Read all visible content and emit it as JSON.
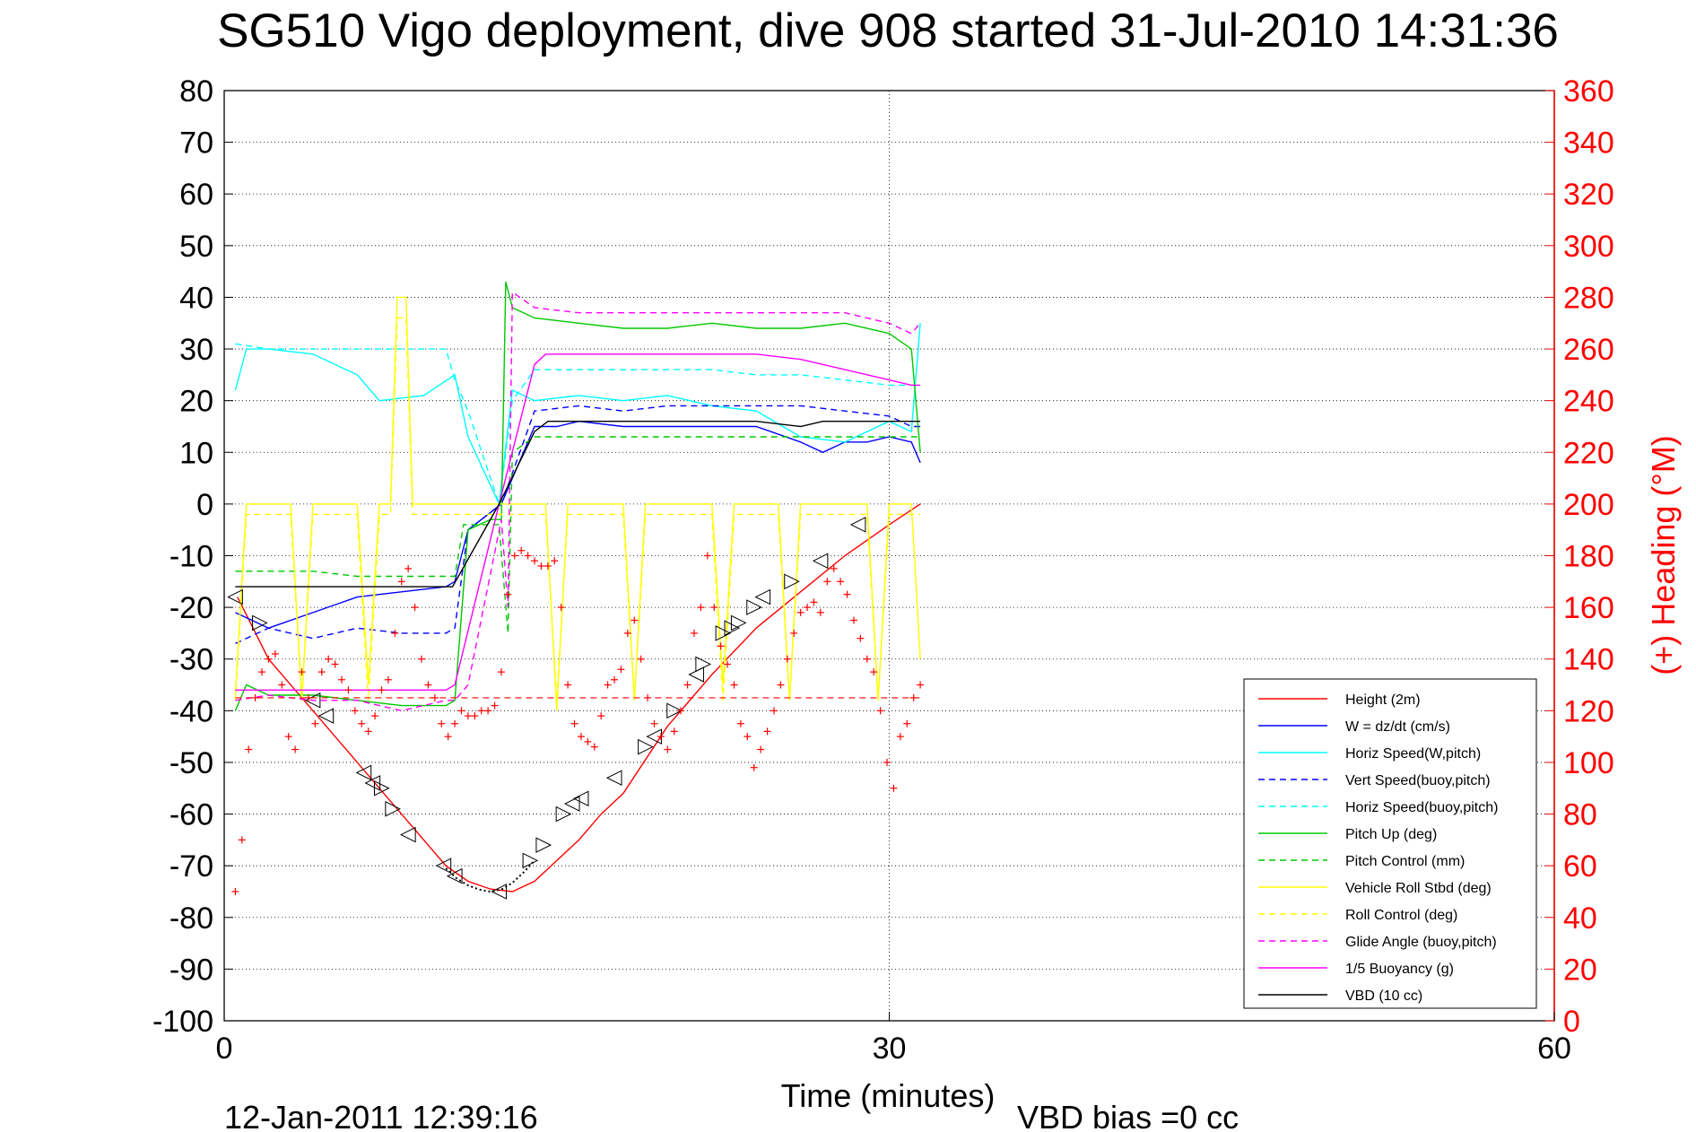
{
  "chart_data": {
    "type": "line",
    "title": "SG510 Vigo deployment, dive 908 started 31-Jul-2010 14:31:36",
    "xlabel": "Time (minutes)",
    "ylabel_right": "(+) Heading (°M)",
    "xlim": [
      0,
      60
    ],
    "ylim": [
      -100,
      80
    ],
    "ylim_right": [
      0,
      360
    ],
    "xticks": [
      "0",
      "30",
      "60"
    ],
    "yticks": [
      "80",
      "70",
      "60",
      "50",
      "40",
      "30",
      "20",
      "10",
      "0",
      "-10",
      "-20",
      "-30",
      "-40",
      "-50",
      "-60",
      "-70",
      "-80",
      "-90",
      "-100"
    ],
    "yticks_right": [
      "360",
      "340",
      "320",
      "300",
      "280",
      "260",
      "240",
      "220",
      "200",
      "180",
      "160",
      "140",
      "120",
      "100",
      "80",
      "60",
      "40",
      "20",
      "0"
    ],
    "grid": "dotted",
    "legend_position": "bottom-right",
    "footer_date": "12-Jan-2011 12:39:16",
    "footer_bias": "VBD bias =0 cc",
    "colors": {
      "red": "#ff0000",
      "blue": "#0000ff",
      "cyan": "#00ffff",
      "green": "#00c800",
      "yellow": "#ffff00",
      "magenta": "#ff00ff",
      "black": "#000000"
    },
    "series": [
      {
        "name": "Height (2m)",
        "color": "#ff0000",
        "style": "solid",
        "x": [
          0.6,
          2,
          4,
          6,
          8,
          10,
          11,
          12,
          13,
          14,
          15,
          16,
          17,
          18,
          20,
          22,
          24,
          26,
          28,
          30,
          31.4
        ],
        "y": [
          -18,
          -30,
          -40,
          -50,
          -60,
          -70,
          -73,
          -74.5,
          -75,
          -73,
          -69,
          -65,
          -60,
          -56,
          -43,
          -33,
          -24,
          -17,
          -10,
          -4,
          0
        ]
      },
      {
        "name": "W = dz/dt (cm/s)",
        "color": "#0000ff",
        "style": "solid",
        "x": [
          0.5,
          2,
          4,
          6,
          8,
          10,
          10.4,
          11,
          12.5,
          14,
          15,
          16,
          18,
          20,
          22,
          24,
          26,
          27,
          28,
          29,
          30,
          31,
          31.4
        ],
        "y": [
          -21,
          -24,
          -21,
          -18,
          -17,
          -16,
          -15,
          -5,
          0,
          15,
          15,
          16,
          15,
          15,
          15,
          15,
          12,
          10,
          12,
          12,
          13,
          12,
          8
        ]
      },
      {
        "name": "Horiz Speed(W,pitch)",
        "color": "#00ffff",
        "style": "solid",
        "x": [
          0.5,
          1,
          2,
          4,
          6,
          7,
          9,
          10.4,
          11,
          12.4,
          13,
          14,
          16,
          18,
          20,
          22,
          24,
          26,
          28,
          30,
          31,
          31.4
        ],
        "y": [
          22,
          30,
          30,
          29,
          25,
          20,
          21,
          25,
          13,
          0,
          22,
          20,
          21,
          20,
          21,
          19,
          18,
          13,
          12,
          16,
          14,
          35
        ]
      },
      {
        "name": "Vert Speed(buoy,pitch)",
        "color": "#0000ff",
        "style": "dashed",
        "x": [
          0.5,
          2,
          4,
          6,
          8,
          10,
          10.4,
          11,
          12.5,
          14,
          16,
          18,
          20,
          22,
          24,
          26,
          28,
          30,
          31,
          31.4
        ],
        "y": [
          -27,
          -24,
          -26,
          -24,
          -25,
          -25,
          -24,
          -5,
          0,
          18,
          19,
          18,
          19,
          19,
          19,
          19,
          18,
          17,
          15,
          15
        ]
      },
      {
        "name": "Horiz Speed(buoy,pitch)",
        "color": "#00ffff",
        "style": "dashed",
        "x": [
          0.5,
          2,
          4,
          6,
          8,
          10,
          10.4,
          11,
          12.4,
          13,
          14,
          16,
          18,
          20,
          22,
          24,
          26,
          28,
          30,
          31.4
        ],
        "y": [
          31,
          30,
          30,
          30,
          30,
          30,
          24,
          18,
          0,
          20,
          26,
          26,
          26,
          26,
          26,
          25,
          25,
          24,
          23,
          23
        ]
      },
      {
        "name": "Pitch Up (deg)",
        "color": "#00c800",
        "style": "solid",
        "x": [
          0.5,
          1,
          2,
          4,
          6,
          8,
          10,
          10.4,
          11,
          12,
          12.5,
          12.7,
          13,
          14,
          16,
          18,
          20,
          22,
          24,
          26,
          28,
          30,
          31,
          31.4
        ],
        "y": [
          -40,
          -35,
          -37,
          -37,
          -38,
          -39,
          -39,
          -38,
          -5,
          -3,
          -3,
          43,
          38,
          36,
          35,
          34,
          34,
          35,
          34,
          34,
          35,
          33,
          30,
          10
        ]
      },
      {
        "name": "Pitch Control (mm)",
        "color": "#00c800",
        "style": "dashed",
        "x": [
          0.5,
          2,
          4,
          6,
          8,
          10,
          10.4,
          10.8,
          12.4,
          12.8,
          13,
          14,
          16,
          18,
          20,
          22,
          24,
          26,
          28,
          30,
          31.4
        ],
        "y": [
          -13,
          -13,
          -13,
          -14,
          -14,
          -14,
          -14,
          -4,
          -4,
          -25,
          10,
          13,
          13,
          13,
          13,
          13,
          13,
          13,
          13,
          13,
          13
        ]
      },
      {
        "name": "Vehicle Roll Stbd (deg)",
        "color": "#ffff00",
        "style": "solid",
        "x": [
          0.5,
          1,
          1.5,
          2,
          3,
          3.5,
          4,
          4.5,
          5,
          6,
          6.5,
          7,
          7.5,
          7.8,
          8.2,
          8.5,
          9,
          9.5,
          10,
          10.5,
          11,
          12,
          12.5,
          13,
          14,
          14.5,
          15,
          15.5,
          16,
          16.5,
          17,
          18,
          18.5,
          19,
          19.5,
          20,
          20.5,
          21,
          22,
          22.5,
          23,
          23.5,
          24,
          25,
          25.5,
          26,
          26.5,
          27,
          28,
          28.5,
          29,
          29.5,
          30,
          30.5,
          31,
          31.4
        ],
        "y": [
          -37,
          0,
          0,
          0,
          0,
          -38,
          0,
          0,
          0,
          0,
          -35,
          0,
          0,
          40,
          40,
          0,
          0,
          0,
          0,
          0,
          0,
          0,
          0,
          0,
          0,
          0,
          -40,
          0,
          0,
          0,
          0,
          0,
          -38,
          0,
          0,
          0,
          0,
          0,
          0,
          -35,
          0,
          0,
          0,
          0,
          -38,
          0,
          0,
          0,
          0,
          0,
          0,
          -38,
          0,
          0,
          0,
          -30
        ]
      },
      {
        "name": "Roll Control (deg)",
        "color": "#ffff00",
        "style": "dashed",
        "x": [
          0.5,
          1,
          1.5,
          2,
          3,
          3.5,
          4,
          4.5,
          5,
          6,
          6.5,
          7,
          7.5,
          7.8,
          8.2,
          8.5,
          9,
          9.5,
          10,
          10.5,
          11,
          12,
          12.5,
          13,
          14,
          14.5,
          15,
          15.5,
          16,
          16.5,
          17,
          18,
          18.5,
          19,
          19.5,
          20,
          20.5,
          21,
          22,
          22.5,
          23,
          23.5,
          24,
          25,
          25.5,
          26,
          26.5,
          27,
          28,
          28.5,
          29,
          29.5,
          30,
          30.5,
          31,
          31.4
        ],
        "y": [
          -38,
          -2,
          -2,
          -2,
          -2,
          -38,
          -2,
          -2,
          -2,
          -2,
          -38,
          -2,
          -2,
          36,
          36,
          -2,
          -2,
          -2,
          -2,
          -2,
          -2,
          -2,
          -2,
          -2,
          -2,
          -2,
          -38,
          -2,
          -2,
          -2,
          -2,
          -2,
          -38,
          -2,
          -2,
          -2,
          -2,
          -2,
          -2,
          -38,
          -2,
          -2,
          -2,
          -2,
          -38,
          -2,
          -2,
          -2,
          -2,
          -2,
          -2,
          -38,
          -2,
          -2,
          -2,
          -2
        ]
      },
      {
        "name": "Glide Angle (buoy,pitch)",
        "color": "#ff00ff",
        "style": "dashed",
        "x": [
          0.5,
          2,
          4,
          6,
          8,
          10,
          10.4,
          11,
          12.5,
          12.8,
          13,
          14,
          16,
          18,
          20,
          22,
          24,
          26,
          28,
          30,
          31,
          31.4
        ],
        "y": [
          -38,
          -37,
          -38,
          -38,
          -40,
          -38,
          -38,
          -35,
          -3,
          -20,
          41,
          38,
          37,
          37,
          37,
          37,
          37,
          37,
          37,
          35,
          33,
          35
        ]
      },
      {
        "name": "1/5 Buoyancy (g)",
        "color": "#ff00ff",
        "style": "solid",
        "x": [
          0.5,
          2,
          4,
          6,
          8,
          10,
          10.4,
          12.4,
          14,
          14.5,
          16,
          18,
          20,
          22,
          24,
          26,
          28,
          30,
          31,
          31.4
        ],
        "y": [
          -36,
          -36,
          -36,
          -36,
          -36,
          -36,
          -35,
          0,
          27,
          29,
          29,
          29,
          29,
          29,
          29,
          28,
          26,
          24,
          23,
          23
        ]
      },
      {
        "name": "VBD (10 cc)",
        "color": "#000000",
        "style": "solid",
        "x": [
          0.5,
          2,
          4,
          6,
          8,
          10,
          10.3,
          12.4,
          14,
          14.6,
          16,
          18,
          20,
          22,
          24,
          26,
          27,
          28,
          30,
          31.4
        ],
        "y": [
          -16,
          -16,
          -16,
          -16,
          -16,
          -16,
          -16,
          0,
          14,
          16,
          16,
          16,
          16,
          16,
          16,
          15,
          16,
          16,
          16,
          16
        ]
      }
    ],
    "heading_points": {
      "name": "(+) Heading (°M)",
      "color": "#ff0000",
      "axis": "right",
      "x": [
        0.5,
        0.8,
        1.1,
        1.4,
        1.7,
        2.0,
        2.3,
        2.6,
        2.9,
        3.2,
        3.5,
        3.8,
        4.1,
        4.4,
        4.7,
        5.0,
        5.3,
        5.6,
        5.9,
        6.2,
        6.5,
        6.8,
        7.1,
        7.4,
        7.7,
        8.0,
        8.3,
        8.6,
        8.9,
        9.2,
        9.5,
        9.8,
        10.1,
        10.4,
        10.7,
        11.0,
        11.3,
        11.6,
        11.9,
        12.2,
        12.5,
        12.8,
        13.1,
        13.4,
        13.7,
        14.0,
        14.3,
        14.6,
        14.9,
        15.2,
        15.5,
        15.8,
        16.1,
        16.4,
        16.7,
        17.0,
        17.3,
        17.6,
        17.9,
        18.2,
        18.5,
        18.8,
        19.1,
        19.4,
        19.7,
        20.0,
        20.3,
        20.6,
        20.9,
        21.2,
        21.5,
        21.8,
        22.1,
        22.4,
        22.7,
        23.0,
        23.3,
        23.6,
        23.9,
        24.2,
        24.5,
        24.8,
        25.1,
        25.4,
        25.7,
        26.0,
        26.3,
        26.6,
        26.9,
        27.2,
        27.5,
        27.8,
        28.1,
        28.4,
        28.7,
        29.0,
        29.3,
        29.6,
        29.9,
        30.2,
        30.5,
        30.8,
        31.1,
        31.4
      ],
      "y": [
        50,
        70,
        105,
        125,
        135,
        140,
        142,
        130,
        110,
        105,
        135,
        125,
        115,
        135,
        140,
        138,
        132,
        128,
        120,
        115,
        112,
        118,
        128,
        132,
        150,
        170,
        175,
        160,
        140,
        130,
        125,
        115,
        110,
        115,
        120,
        118,
        118,
        120,
        120,
        122,
        135,
        165,
        180,
        182,
        180,
        178,
        176,
        176,
        178,
        160,
        130,
        115,
        110,
        108,
        106,
        118,
        130,
        132,
        136,
        150,
        155,
        140,
        125,
        115,
        110,
        105,
        112,
        120,
        130,
        150,
        160,
        180,
        160,
        145,
        138,
        130,
        115,
        110,
        98,
        105,
        112,
        120,
        130,
        140,
        150,
        158,
        160,
        162,
        158,
        170,
        175,
        170,
        165,
        155,
        148,
        140,
        135,
        120,
        100,
        90,
        110,
        115,
        125,
        130
      ]
    },
    "depth_markers": {
      "x": [
        0.5,
        1.6,
        4.0,
        4.6,
        6.3,
        6.7,
        7.1,
        7.6,
        8.3,
        9.9,
        10.4,
        12.4,
        13.8,
        14.4,
        15.3,
        15.7,
        16.1,
        17.6,
        19.0,
        19.4,
        20.3,
        21.3,
        21.6,
        22.5,
        22.9,
        23.2,
        23.9,
        24.3,
        25.6,
        26.9,
        28.6
      ],
      "y": [
        -18,
        -23,
        -38,
        -41,
        -52,
        -54,
        -55,
        -59,
        -64,
        -70,
        -72,
        -75,
        -69,
        -66,
        -60,
        -58,
        -57,
        -53,
        -47,
        -45,
        -40,
        -33,
        -31,
        -25,
        -24,
        -23,
        -20,
        -18,
        -15,
        -11,
        -4
      ],
      "dir": [
        "l",
        "r",
        "l",
        "l",
        "l",
        "l",
        "r",
        "r",
        "l",
        "l",
        "l",
        "l",
        "r",
        "r",
        "r",
        "l",
        "l",
        "l",
        "r",
        "l",
        "r",
        "l",
        "r",
        "r",
        "r",
        "r",
        "r",
        "l",
        "r",
        "l",
        "l"
      ]
    }
  }
}
